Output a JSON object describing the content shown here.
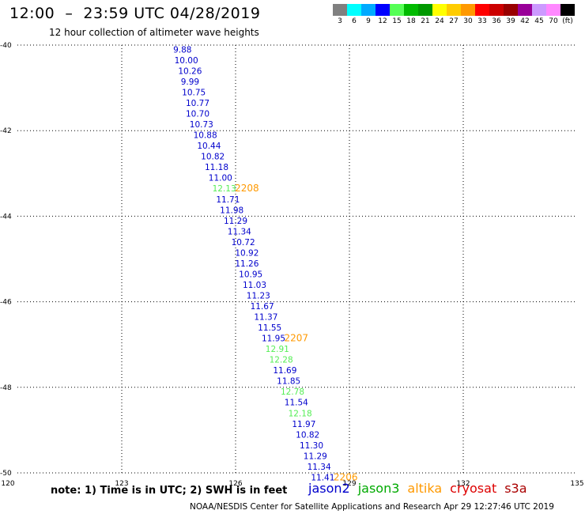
{
  "header": {
    "title": "12:00  –  23:59 UTC 04/28/2019",
    "subtitle": "12 hour collection of altimeter wave heights"
  },
  "colorbar": {
    "colors": [
      "#808080",
      "#00ffff",
      "#00aaff",
      "#0000ff",
      "#55ff55",
      "#00bb00",
      "#009900",
      "#ffff00",
      "#ffcc00",
      "#ff9900",
      "#ff0000",
      "#cc0000",
      "#990000",
      "#990099",
      "#cc99ff",
      "#ff88ff",
      "#000000"
    ],
    "labels": [
      "3",
      "6",
      "9",
      "12",
      "15",
      "18",
      "21",
      "24",
      "27",
      "30",
      "33",
      "36",
      "39",
      "42",
      "45",
      "70",
      "(ft)"
    ]
  },
  "chart_data": {
    "type": "scatter",
    "title": "12:00  –  23:59 UTC 04/28/2019",
    "xlim": [
      120,
      135
    ],
    "ylim": [
      -50,
      -40
    ],
    "x_ticks": [
      "120",
      "123",
      "126",
      "129",
      "132",
      "135"
    ],
    "y_ticks": [
      "-40",
      "-42",
      "-44",
      "-46",
      "-48",
      "-50"
    ],
    "grid": true,
    "series": [
      {
        "name": "jason2",
        "color": "#0000cc",
        "points": [
          {
            "x": 124.6,
            "y": -40.1,
            "label": "9.88"
          },
          {
            "x": 124.7,
            "y": -40.35,
            "label": "10.00"
          },
          {
            "x": 124.8,
            "y": -40.6,
            "label": "10.26"
          },
          {
            "x": 124.8,
            "y": -40.85,
            "label": "9.99"
          },
          {
            "x": 124.9,
            "y": -41.1,
            "label": "10.75"
          },
          {
            "x": 125.0,
            "y": -41.35,
            "label": "10.77"
          },
          {
            "x": 125.0,
            "y": -41.6,
            "label": "10.70"
          },
          {
            "x": 125.1,
            "y": -41.85,
            "label": "10.73"
          },
          {
            "x": 125.2,
            "y": -42.1,
            "label": "10.88"
          },
          {
            "x": 125.3,
            "y": -42.35,
            "label": "10.44"
          },
          {
            "x": 125.4,
            "y": -42.6,
            "label": "10.82"
          },
          {
            "x": 125.5,
            "y": -42.85,
            "label": "11.18"
          },
          {
            "x": 125.6,
            "y": -43.1,
            "label": "11.00"
          },
          {
            "x": 125.8,
            "y": -43.6,
            "label": "11.71"
          },
          {
            "x": 125.9,
            "y": -43.85,
            "label": "11.98"
          },
          {
            "x": 126.0,
            "y": -44.1,
            "label": "11.29"
          },
          {
            "x": 126.1,
            "y": -44.35,
            "label": "11.34"
          },
          {
            "x": 126.2,
            "y": -44.6,
            "label": "10.72"
          },
          {
            "x": 126.3,
            "y": -44.85,
            "label": "10.92"
          },
          {
            "x": 126.3,
            "y": -45.1,
            "label": "11.26"
          },
          {
            "x": 126.4,
            "y": -45.35,
            "label": "10.95"
          },
          {
            "x": 126.5,
            "y": -45.6,
            "label": "11.03"
          },
          {
            "x": 126.6,
            "y": -45.85,
            "label": "11.23"
          },
          {
            "x": 126.7,
            "y": -46.1,
            "label": "11.67"
          },
          {
            "x": 126.8,
            "y": -46.35,
            "label": "11.37"
          },
          {
            "x": 126.9,
            "y": -46.6,
            "label": "11.55"
          },
          {
            "x": 127.0,
            "y": -46.85,
            "label": "11.95"
          },
          {
            "x": 127.3,
            "y": -47.6,
            "label": "11.69"
          },
          {
            "x": 127.4,
            "y": -47.85,
            "label": "11.85"
          },
          {
            "x": 127.6,
            "y": -48.35,
            "label": "11.54"
          },
          {
            "x": 127.8,
            "y": -48.85,
            "label": "11.97"
          },
          {
            "x": 127.9,
            "y": -49.1,
            "label": "10.82"
          },
          {
            "x": 128.0,
            "y": -49.35,
            "label": "11.30"
          },
          {
            "x": 128.1,
            "y": -49.6,
            "label": "11.29"
          },
          {
            "x": 128.2,
            "y": -49.85,
            "label": "11.34"
          },
          {
            "x": 128.3,
            "y": -50.1,
            "label": "11.41"
          }
        ]
      },
      {
        "name": "jason3",
        "color": "#55ee55",
        "points": [
          {
            "x": 125.7,
            "y": -43.35,
            "label": "12.13"
          },
          {
            "x": 127.1,
            "y": -47.1,
            "label": "12.91"
          },
          {
            "x": 127.2,
            "y": -47.35,
            "label": "12.28"
          },
          {
            "x": 127.5,
            "y": -48.1,
            "label": "12.78"
          },
          {
            "x": 127.7,
            "y": -48.6,
            "label": "12.18"
          }
        ]
      },
      {
        "name": "altika",
        "color": "#ff9900",
        "points": [
          {
            "x": 126.3,
            "y": -43.35,
            "label": "2208"
          },
          {
            "x": 127.6,
            "y": -46.85,
            "label": "2207"
          },
          {
            "x": 128.9,
            "y": -50.1,
            "label": "2206"
          }
        ]
      }
    ]
  },
  "footer": {
    "note": "note: 1) Time is in UTC; 2) SWH is in feet",
    "satellites": [
      {
        "label": "jason2",
        "color": "#0000cc"
      },
      {
        "label": "jason3",
        "color": "#00aa00"
      },
      {
        "label": "altika",
        "color": "#ff9900"
      },
      {
        "label": "cryosat",
        "color": "#dd0000"
      },
      {
        "label": "s3a",
        "color": "#aa0000"
      }
    ],
    "credit": "NOAA/NESDIS Center for Satellite Applications and Research    Apr 29 12:27:46 UTC 2019"
  }
}
